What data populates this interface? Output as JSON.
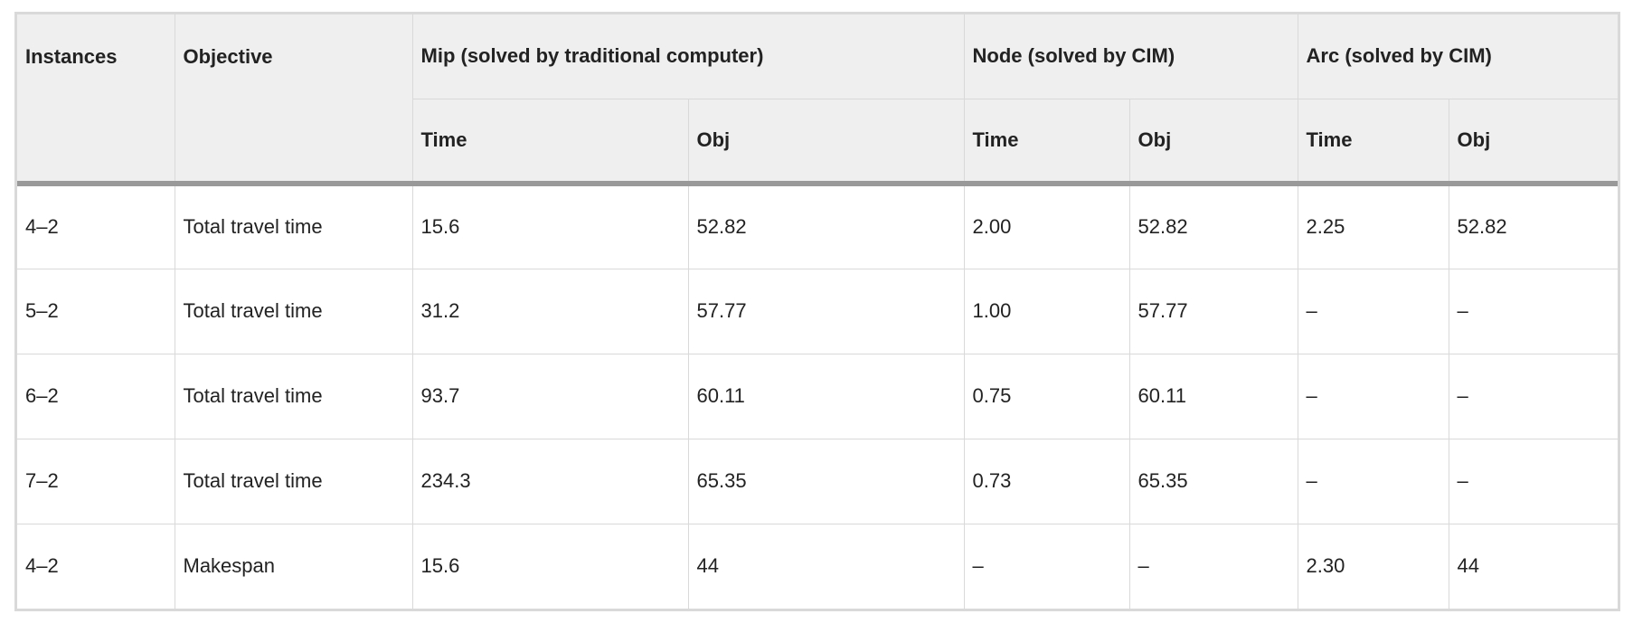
{
  "table": {
    "header_top": {
      "instances": "Instances",
      "objective": "Objective",
      "mip": "Mip (solved by traditional computer)",
      "node": "Node (solved by CIM)",
      "arc": "Arc (solved by CIM)"
    },
    "header_sub": [
      "Time",
      "Obj",
      "Time",
      "Obj",
      "Time",
      "Obj"
    ],
    "rows": [
      [
        "4–2",
        "Total travel time",
        "15.6",
        "52.82",
        "2.00",
        "52.82",
        "2.25",
        "52.82"
      ],
      [
        "5–2",
        "Total travel time",
        "31.2",
        "57.77",
        "1.00",
        "57.77",
        "–",
        "–"
      ],
      [
        "6–2",
        "Total travel time",
        "93.7",
        "60.11",
        "0.75",
        "60.11",
        "–",
        "–"
      ],
      [
        "7–2",
        "Total travel time",
        "234.3",
        "65.35",
        "0.73",
        "65.35",
        "–",
        "–"
      ],
      [
        "4–2",
        "Makespan",
        "15.6",
        "44",
        "–",
        "–",
        "2.30",
        "44"
      ]
    ]
  }
}
